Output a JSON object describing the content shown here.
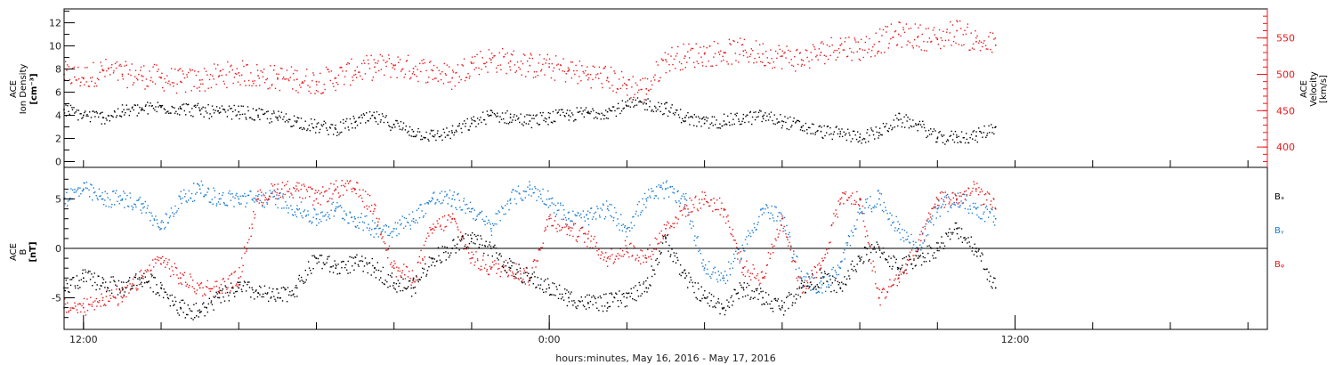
{
  "colors": {
    "black": "#000000",
    "red": "#e8191c",
    "blue": "#1a7bd1"
  },
  "xaxis": {
    "label": "hours:minutes, May 16, 2016 - May 17, 2016",
    "xlim_hours": [
      -0.5,
      30.5
    ],
    "tick_labels": [
      {
        "text": "12:00",
        "hour": 0
      },
      {
        "text": "0:00",
        "hour": 12
      },
      {
        "text": "12:00",
        "hour": 24
      }
    ],
    "minor_tick_hours": [
      0,
      2,
      4,
      6,
      8,
      10,
      12,
      14,
      16,
      18,
      20,
      22,
      24,
      26,
      28,
      30
    ]
  },
  "panel1": {
    "left_label_lines": [
      "ACE",
      "Ion Density",
      "[cm⁻³]"
    ],
    "right_label_lines": [
      "ACE",
      "Velocity",
      "[km/s]"
    ],
    "left_ylim": [
      -0.5,
      13.2
    ],
    "left_ticks": [
      0,
      2,
      4,
      6,
      8,
      10,
      12
    ],
    "right_ylim": [
      372,
      590
    ],
    "right_ticks": [
      400,
      450,
      500,
      550
    ]
  },
  "panel2": {
    "left_label_lines": [
      "ACE",
      "B",
      "[nT]"
    ],
    "ylim": [
      -8.2,
      8.2
    ],
    "ticks": [
      -5,
      0,
      5
    ],
    "legend": [
      "Bₓ",
      "Bᵧ",
      "Bᵩ"
    ]
  },
  "chart_data": [
    {
      "type": "scatter",
      "title": "",
      "xlabel": "hours:minutes, May 16, 2016 - May 17, 2016",
      "ylabel": "ACE Ion Density [cm⁻³]",
      "y2label": "ACE Velocity [km/s]",
      "x_unit": "hours since May 16 12:00",
      "series": [
        {
          "name": "Ion Density",
          "color": "black",
          "axis": "left",
          "x": [
            -0.5,
            0,
            0.5,
            1,
            1.5,
            2,
            2.5,
            3,
            3.5,
            4,
            4.5,
            5,
            5.5,
            6,
            6.5,
            7,
            7.5,
            8,
            8.5,
            9,
            9.5,
            10,
            10.5,
            11,
            11.5,
            12,
            12.5,
            13,
            13.5,
            14,
            14.5,
            15,
            15.5,
            16,
            16.5,
            17,
            17.5,
            18,
            18.5,
            19,
            19.5,
            20,
            20.5,
            21,
            21.5,
            22,
            22.5,
            23,
            23.5
          ],
          "y": [
            4.5,
            4.0,
            3.8,
            4.3,
            4.5,
            4.7,
            4.6,
            4.4,
            4.2,
            4.3,
            4.0,
            3.8,
            3.5,
            3.0,
            2.8,
            3.4,
            3.8,
            3.2,
            2.6,
            2.2,
            2.5,
            3.3,
            4.0,
            3.8,
            3.5,
            3.8,
            4.0,
            4.2,
            4.3,
            4.8,
            5.0,
            4.6,
            3.8,
            3.3,
            3.5,
            3.7,
            3.9,
            3.5,
            3.0,
            2.6,
            2.4,
            2.1,
            2.5,
            3.6,
            3.2,
            2.0,
            2.1,
            2.2,
            3.0
          ]
        },
        {
          "name": "Velocity",
          "color": "red",
          "axis": "right",
          "x": [
            -0.5,
            0,
            0.5,
            1,
            1.5,
            2,
            2.5,
            3,
            3.5,
            4,
            4.5,
            5,
            5.5,
            6,
            6.5,
            7,
            7.5,
            8,
            8.5,
            9,
            9.5,
            10,
            10.5,
            11,
            11.5,
            12,
            12.5,
            13,
            13.5,
            14,
            14.5,
            15,
            15.5,
            16,
            16.5,
            17,
            17.5,
            18,
            18.5,
            19,
            19.5,
            20,
            20.5,
            21,
            21.5,
            22,
            22.5,
            23,
            23.5
          ],
          "y": [
            500,
            495,
            505,
            500,
            498,
            495,
            490,
            492,
            498,
            502,
            498,
            495,
            493,
            490,
            495,
            505,
            510,
            512,
            508,
            505,
            495,
            515,
            520,
            518,
            512,
            510,
            505,
            500,
            495,
            485,
            480,
            520,
            525,
            528,
            530,
            532,
            528,
            525,
            520,
            530,
            540,
            535,
            545,
            555,
            552,
            548,
            560,
            545,
            540
          ]
        }
      ]
    },
    {
      "type": "scatter",
      "title": "",
      "ylabel": "ACE B [nT]",
      "x_unit": "hours since May 16 12:00",
      "series": [
        {
          "name": "Bx",
          "color": "black",
          "x": [
            -0.5,
            0,
            0.5,
            1,
            1.5,
            2,
            2.5,
            3,
            3.5,
            4,
            4.5,
            5,
            5.5,
            6,
            6.5,
            7,
            7.5,
            8,
            8.5,
            9,
            9.5,
            10,
            10.5,
            11,
            11.5,
            12,
            12.5,
            13,
            13.5,
            14,
            14.5,
            15,
            15.5,
            16,
            16.5,
            17,
            17.5,
            18,
            18.5,
            19,
            19.5,
            20,
            20.5,
            21,
            21.5,
            22,
            22.5,
            23,
            23.5
          ],
          "y": [
            -4,
            -3,
            -3.5,
            -4,
            -3,
            -4,
            -6,
            -6.5,
            -5,
            -4,
            -4.5,
            -5,
            -4,
            -1,
            -2,
            -1.5,
            -2,
            -3.5,
            -4,
            -1,
            0,
            1,
            0,
            -2,
            -3,
            -4,
            -5,
            -5.5,
            -5.5,
            -5,
            -4,
            1,
            -3,
            -5,
            -6,
            -4,
            -5,
            -6,
            -4,
            -3,
            -4,
            -1,
            0,
            -2,
            -1,
            0,
            2,
            0,
            -4
          ]
        },
        {
          "name": "By",
          "color": "blue",
          "x": [
            -0.5,
            0,
            0.5,
            1,
            1.5,
            2,
            2.5,
            3,
            3.5,
            4,
            4.5,
            5,
            5.5,
            6,
            6.5,
            7,
            7.5,
            8,
            8.5,
            9,
            9.5,
            10,
            10.5,
            11,
            11.5,
            12,
            12.5,
            13,
            13.5,
            14,
            14.5,
            15,
            15.5,
            16,
            16.5,
            17,
            17.5,
            18,
            18.5,
            19,
            19.5,
            20,
            20.5,
            21,
            21.5,
            22,
            22.5,
            23,
            23.5
          ],
          "y": [
            5,
            6,
            5,
            5,
            4.5,
            2,
            5,
            6,
            5,
            5,
            5,
            5,
            4,
            3,
            4,
            3,
            2,
            2,
            3,
            5,
            5,
            4,
            2,
            5,
            6,
            5,
            3,
            3,
            4,
            2,
            5,
            6,
            5,
            -2,
            -3,
            0,
            4,
            3,
            -3,
            -4,
            -2,
            4,
            5,
            2,
            0,
            4,
            5,
            4,
            3
          ]
        },
        {
          "name": "Bz",
          "color": "red",
          "x": [
            -0.5,
            0,
            0.5,
            1,
            1.5,
            2,
            2.5,
            3,
            3.5,
            4,
            4.5,
            5,
            5.5,
            6,
            6.5,
            7,
            7.5,
            8,
            8.5,
            9,
            9.5,
            10,
            10.5,
            11,
            11.5,
            12,
            12.5,
            13,
            13.5,
            14,
            14.5,
            15,
            15.5,
            16,
            16.5,
            17,
            17.5,
            18,
            18.5,
            19,
            19.5,
            20,
            20.5,
            21,
            21.5,
            22,
            22.5,
            23,
            23.5
          ],
          "y": [
            -6,
            -6,
            -5,
            -5,
            -3,
            -1,
            -3,
            -4,
            -4,
            -3,
            5,
            6,
            6,
            5,
            6,
            6,
            4,
            -2,
            -3,
            2,
            3,
            -1,
            -2,
            -2,
            -3,
            3,
            2,
            1,
            -1,
            0,
            -1,
            2,
            4,
            5,
            4,
            -2,
            -3,
            3,
            -4,
            -2,
            5,
            5,
            -5,
            -3,
            0,
            5,
            5,
            6,
            4
          ]
        }
      ]
    }
  ]
}
